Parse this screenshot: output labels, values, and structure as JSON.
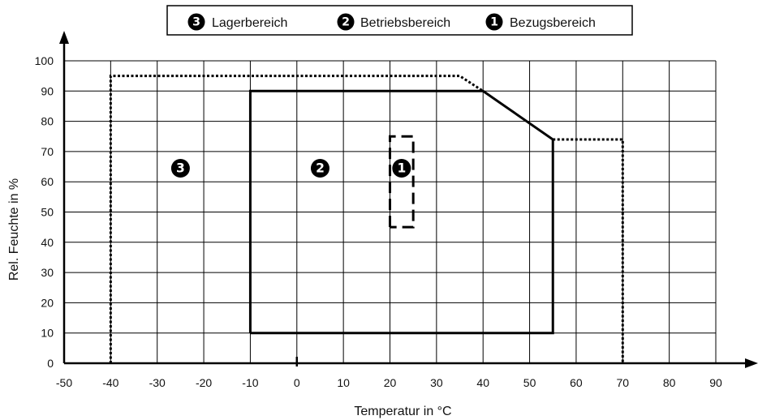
{
  "chart_data": {
    "type": "line",
    "xlabel": "Temperatur in °C",
    "ylabel": "Rel. Feuchte in %",
    "xlim": [
      -50,
      90
    ],
    "ylim": [
      0,
      100
    ],
    "x_ticks": [
      -50,
      -40,
      -30,
      -20,
      -10,
      0,
      10,
      20,
      30,
      40,
      50,
      60,
      70,
      80,
      90
    ],
    "y_ticks": [
      0,
      10,
      20,
      30,
      40,
      50,
      60,
      70,
      80,
      90,
      100
    ],
    "grid": true,
    "legend_position": "top-center",
    "legend": [
      {
        "number": "3",
        "label": "Lagerbereich"
      },
      {
        "number": "2",
        "label": "Betriebsbereich"
      },
      {
        "number": "1",
        "label": "Bezugsbereich"
      }
    ],
    "series": [
      {
        "number": "3",
        "line_style": "dotted",
        "points": [
          [
            -40,
            0
          ],
          [
            -40,
            95
          ],
          [
            35,
            95
          ],
          [
            40,
            90
          ]
        ],
        "points_right": [
          [
            55,
            74
          ],
          [
            70,
            74
          ],
          [
            70,
            0
          ]
        ]
      },
      {
        "number": "2",
        "line_style": "solid",
        "points": [
          [
            -10,
            10
          ],
          [
            -10,
            90
          ],
          [
            40,
            90
          ],
          [
            55,
            74
          ],
          [
            55,
            10
          ],
          [
            -10,
            10
          ]
        ]
      },
      {
        "number": "1",
        "line_style": "dashed",
        "points": [
          [
            20,
            45
          ],
          [
            20,
            75
          ],
          [
            25,
            75
          ],
          [
            25,
            45
          ],
          [
            20,
            45
          ]
        ]
      }
    ],
    "region_markers": [
      {
        "number": "3",
        "x": -25,
        "y": 65
      },
      {
        "number": "2",
        "x": 5,
        "y": 65
      },
      {
        "number": "1",
        "x": 22.5,
        "y": 65
      }
    ]
  }
}
